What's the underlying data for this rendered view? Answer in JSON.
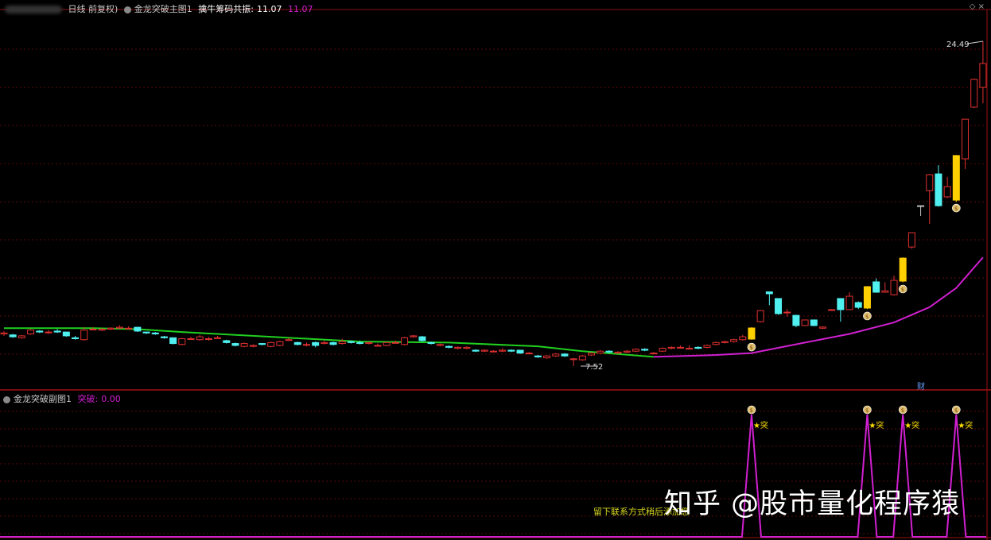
{
  "header": {
    "period": "日线 前复权)",
    "indicator": "金龙突破主图1",
    "label": "擒牛筹码共振:",
    "value1": "11.07",
    "value2": "11.07"
  },
  "sub_header": {
    "indicator": "金龙突破副图1",
    "label": "突破:",
    "value": "0.00"
  },
  "top_right_icons": [
    "diamond-icon",
    "close-icon"
  ],
  "watermark": "知乎 @股市量化程序猿",
  "note": "留下联系方式稍后添加您",
  "finance_marker": "财",
  "colors": {
    "background": "#000000",
    "up": "#e03030",
    "down": "#50f0f0",
    "signal_candle": "#ffd000",
    "ma_before": "#20d020",
    "ma_after": "#d020d0",
    "grid": "#5a0a0a",
    "sub_line": "#d020d0"
  },
  "chart_data": [
    {
      "type": "candlestick",
      "annotations": {
        "high_label": "24.49",
        "low_label": "7.52"
      },
      "ylim": [
        7.3,
        25
      ],
      "candle_format": [
        "open",
        "close",
        "high",
        "low"
      ],
      "candles": [
        [
          9.2,
          9.25,
          9.35,
          9.1
        ],
        [
          9.15,
          9.05,
          9.2,
          9.0
        ],
        [
          9.0,
          9.1,
          9.15,
          8.95
        ],
        [
          9.2,
          9.4,
          9.45,
          9.15
        ],
        [
          9.35,
          9.3,
          9.4,
          9.25
        ],
        [
          9.3,
          9.3,
          9.4,
          9.2
        ],
        [
          9.35,
          9.3,
          9.45,
          9.25
        ],
        [
          9.3,
          9.1,
          9.3,
          9.05
        ],
        [
          9.0,
          8.95,
          9.1,
          8.9
        ],
        [
          8.9,
          9.4,
          9.55,
          8.85
        ],
        [
          9.45,
          9.45,
          9.55,
          9.4
        ],
        [
          9.4,
          9.45,
          9.5,
          9.35
        ],
        [
          9.45,
          9.5,
          9.55,
          9.4
        ],
        [
          9.5,
          9.55,
          9.65,
          9.45
        ],
        [
          9.5,
          9.5,
          9.6,
          9.45
        ],
        [
          9.55,
          9.35,
          9.55,
          9.3
        ],
        [
          9.3,
          9.25,
          9.3,
          9.2
        ],
        [
          9.25,
          9.2,
          9.3,
          9.15
        ],
        [
          9.05,
          9.0,
          9.1,
          8.95
        ],
        [
          9.0,
          8.7,
          9.0,
          8.65
        ],
        [
          8.65,
          8.95,
          9.0,
          8.6
        ],
        [
          8.95,
          8.95,
          9.05,
          8.9
        ],
        [
          8.9,
          9.05,
          9.15,
          8.85
        ],
        [
          8.95,
          8.95,
          9.05,
          8.85
        ],
        [
          9.0,
          9.0,
          9.1,
          8.95
        ],
        [
          8.85,
          8.75,
          8.9,
          8.7
        ],
        [
          8.7,
          8.6,
          8.75,
          8.55
        ],
        [
          8.55,
          8.7,
          8.75,
          8.5
        ],
        [
          8.55,
          8.6,
          8.65,
          8.5
        ],
        [
          8.7,
          8.65,
          8.7,
          8.6
        ],
        [
          8.55,
          8.75,
          8.8,
          8.5
        ],
        [
          8.6,
          8.8,
          8.85,
          8.55
        ],
        [
          8.9,
          8.9,
          9.0,
          8.85
        ],
        [
          8.75,
          8.65,
          8.8,
          8.6
        ],
        [
          8.65,
          8.65,
          8.75,
          8.55
        ],
        [
          8.75,
          8.6,
          8.8,
          8.5
        ],
        [
          8.7,
          8.75,
          8.85,
          8.65
        ],
        [
          8.75,
          8.65,
          8.8,
          8.6
        ],
        [
          8.7,
          8.8,
          8.95,
          8.65
        ],
        [
          8.8,
          8.75,
          8.85,
          8.7
        ],
        [
          8.75,
          8.7,
          8.85,
          8.65
        ],
        [
          8.7,
          8.75,
          8.8,
          8.65
        ],
        [
          8.6,
          8.6,
          8.7,
          8.55
        ],
        [
          8.6,
          8.75,
          8.8,
          8.55
        ],
        [
          8.75,
          8.75,
          8.85,
          8.7
        ],
        [
          8.65,
          9.0,
          9.05,
          8.6
        ],
        [
          9.05,
          9.1,
          9.15,
          9.0
        ],
        [
          9.05,
          8.85,
          9.1,
          8.8
        ],
        [
          8.75,
          8.7,
          8.8,
          8.65
        ],
        [
          8.6,
          8.65,
          8.7,
          8.55
        ],
        [
          8.55,
          8.5,
          8.6,
          8.45
        ],
        [
          8.45,
          8.5,
          8.55,
          8.4
        ],
        [
          8.45,
          8.5,
          8.55,
          8.4
        ],
        [
          8.35,
          8.3,
          8.4,
          8.25
        ],
        [
          8.3,
          8.35,
          8.4,
          8.25
        ],
        [
          8.3,
          8.3,
          8.35,
          8.25
        ],
        [
          8.3,
          8.35,
          8.45,
          8.25
        ],
        [
          8.35,
          8.3,
          8.4,
          8.25
        ],
        [
          8.35,
          8.2,
          8.35,
          8.15
        ],
        [
          8.2,
          8.2,
          8.25,
          8.15
        ],
        [
          8.05,
          8.0,
          8.1,
          7.95
        ],
        [
          7.95,
          8.05,
          8.1,
          7.9
        ],
        [
          8.05,
          8.15,
          8.2,
          8.0
        ],
        [
          8.15,
          8.05,
          8.2,
          8.0
        ],
        [
          7.9,
          7.9,
          7.95,
          7.52
        ],
        [
          7.85,
          8.05,
          8.1,
          7.8
        ],
        [
          8.1,
          8.2,
          8.25,
          8.05
        ],
        [
          8.2,
          8.3,
          8.35,
          8.15
        ],
        [
          8.3,
          8.25,
          8.35,
          8.2
        ],
        [
          8.2,
          8.25,
          8.3,
          8.15
        ],
        [
          8.25,
          8.3,
          8.35,
          8.2
        ],
        [
          8.3,
          8.4,
          8.45,
          8.25
        ],
        [
          8.4,
          8.35,
          8.45,
          8.3
        ],
        [
          8.2,
          8.2,
          8.25,
          8.15
        ],
        [
          8.3,
          8.45,
          8.5,
          8.25
        ],
        [
          8.45,
          8.5,
          8.55,
          8.4
        ],
        [
          8.5,
          8.5,
          8.6,
          8.45
        ],
        [
          8.45,
          8.45,
          8.6,
          8.4
        ],
        [
          8.5,
          8.45,
          8.55,
          8.4
        ],
        [
          8.5,
          8.6,
          8.65,
          8.45
        ],
        [
          8.65,
          8.75,
          8.8,
          8.6
        ],
        [
          8.75,
          8.8,
          8.85,
          8.7
        ],
        [
          8.8,
          8.9,
          8.95,
          8.75
        ],
        [
          8.9,
          9.05,
          9.15,
          8.85
        ],
        [
          8.93,
          9.51,
          9.55,
          8.9
        ],
        [
          9.84,
          10.42,
          10.45,
          9.8
        ],
        [
          11.4,
          11.3,
          11.42,
          10.7
        ],
        [
          11.05,
          10.26,
          11.05,
          10.2
        ],
        [
          10.34,
          10.34,
          10.5,
          10.1
        ],
        [
          10.17,
          9.64,
          10.2,
          9.55
        ],
        [
          9.64,
          9.93,
          9.95,
          9.6
        ],
        [
          9.93,
          9.64,
          9.95,
          9.6
        ],
        [
          9.5,
          9.56,
          9.6,
          9.45
        ],
        [
          10.47,
          10.47,
          10.5,
          10.45
        ],
        [
          11.05,
          10.47,
          11.05,
          9.84
        ],
        [
          10.47,
          11.17,
          11.38,
          10.45
        ],
        [
          10.84,
          10.59,
          10.9,
          10.5
        ],
        [
          10.55,
          11.67,
          11.7,
          10.5
        ],
        [
          11.92,
          11.38,
          12.1,
          11.35
        ],
        [
          11.38,
          11.45,
          11.9,
          11.35
        ],
        [
          11.25,
          12.0,
          12.25,
          11.2
        ],
        [
          11.96,
          13.16,
          13.2,
          11.9
        ],
        [
          13.74,
          14.49,
          14.5,
          13.65
        ],
        [
          15.9,
          15.9,
          15.9,
          15.36
        ],
        [
          16.69,
          17.52,
          17.55,
          14.95
        ],
        [
          17.56,
          15.9,
          18.02,
          15.85
        ],
        [
          16.36,
          16.9,
          17.4,
          16.3
        ],
        [
          16.19,
          18.52,
          18.55,
          16.1
        ],
        [
          18.35,
          20.42,
          20.45,
          17.81
        ],
        [
          21.05,
          22.5,
          22.55,
          21.0
        ],
        [
          22.08,
          23.33,
          24.49,
          21.25
        ]
      ],
      "doji_gray_indices": [
        103
      ],
      "signal_indices": [
        84,
        97,
        101,
        107
      ],
      "ma_line": [
        [
          0,
          9.5
        ],
        [
          10,
          9.5
        ],
        [
          15,
          9.45
        ],
        [
          20,
          9.3
        ],
        [
          30,
          9.05
        ],
        [
          40,
          8.8
        ],
        [
          50,
          8.75
        ],
        [
          60,
          8.55
        ],
        [
          65,
          8.3
        ],
        [
          73,
          8.0
        ],
        [
          80,
          8.1
        ],
        [
          84,
          8.2
        ],
        [
          90,
          8.75
        ],
        [
          95,
          9.2
        ],
        [
          100,
          9.8
        ],
        [
          104,
          10.6
        ],
        [
          107,
          11.6
        ],
        [
          110,
          13.2
        ]
      ],
      "ma_color_switch_index": 73
    },
    {
      "type": "line",
      "series": [
        {
          "name": "突破",
          "signal_indices": [
            84,
            97,
            101,
            107
          ],
          "signal_value": 1,
          "base_value": 0
        }
      ],
      "signal_label": "★突"
    }
  ]
}
